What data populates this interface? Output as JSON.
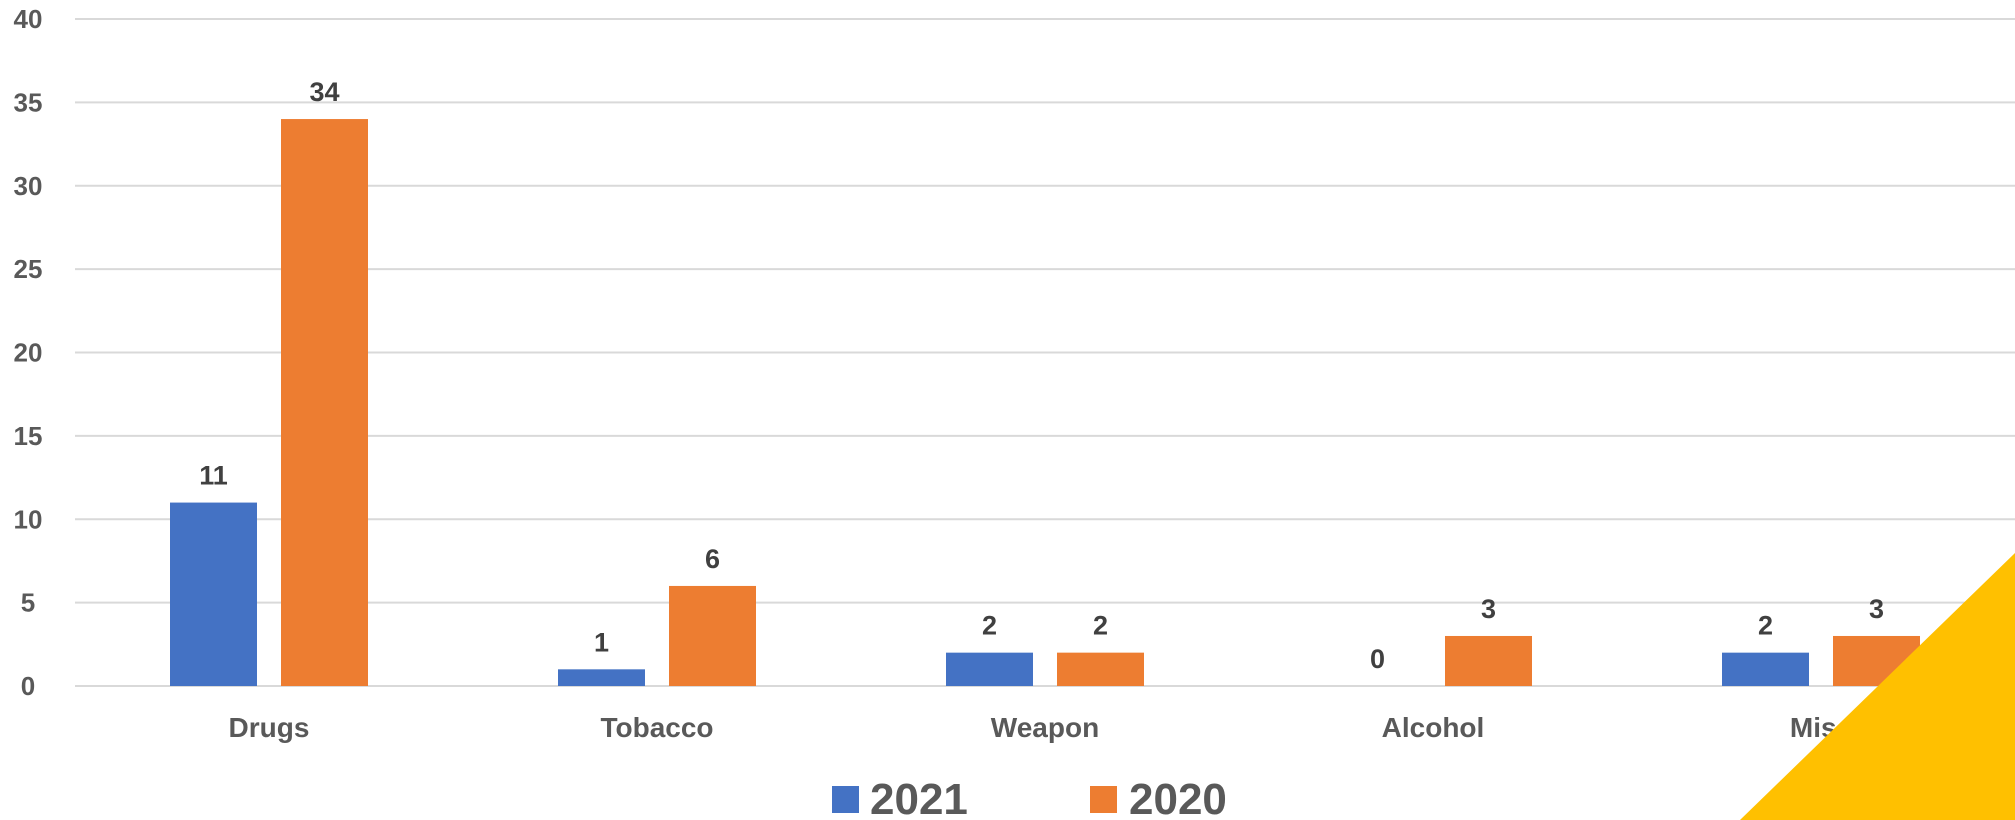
{
  "chart_data": {
    "type": "bar",
    "title": "",
    "xlabel": "",
    "ylabel": "",
    "categories": [
      "Drugs",
      "Tobacco",
      "Weapon",
      "Alcohol",
      "Misc"
    ],
    "series": [
      {
        "name": "2021",
        "values": [
          11,
          1,
          2,
          0,
          2
        ],
        "color": "#4472C4"
      },
      {
        "name": "2020",
        "values": [
          34,
          6,
          2,
          3,
          3
        ],
        "color": "#ED7D31"
      }
    ],
    "ylim": [
      0,
      40
    ],
    "yticks": [
      0,
      5,
      10,
      15,
      20,
      25,
      30,
      35,
      40
    ],
    "grid": true,
    "legend_position": "bottom",
    "data_labels": true
  },
  "decoration": {
    "corner_color": "#FFC000"
  }
}
